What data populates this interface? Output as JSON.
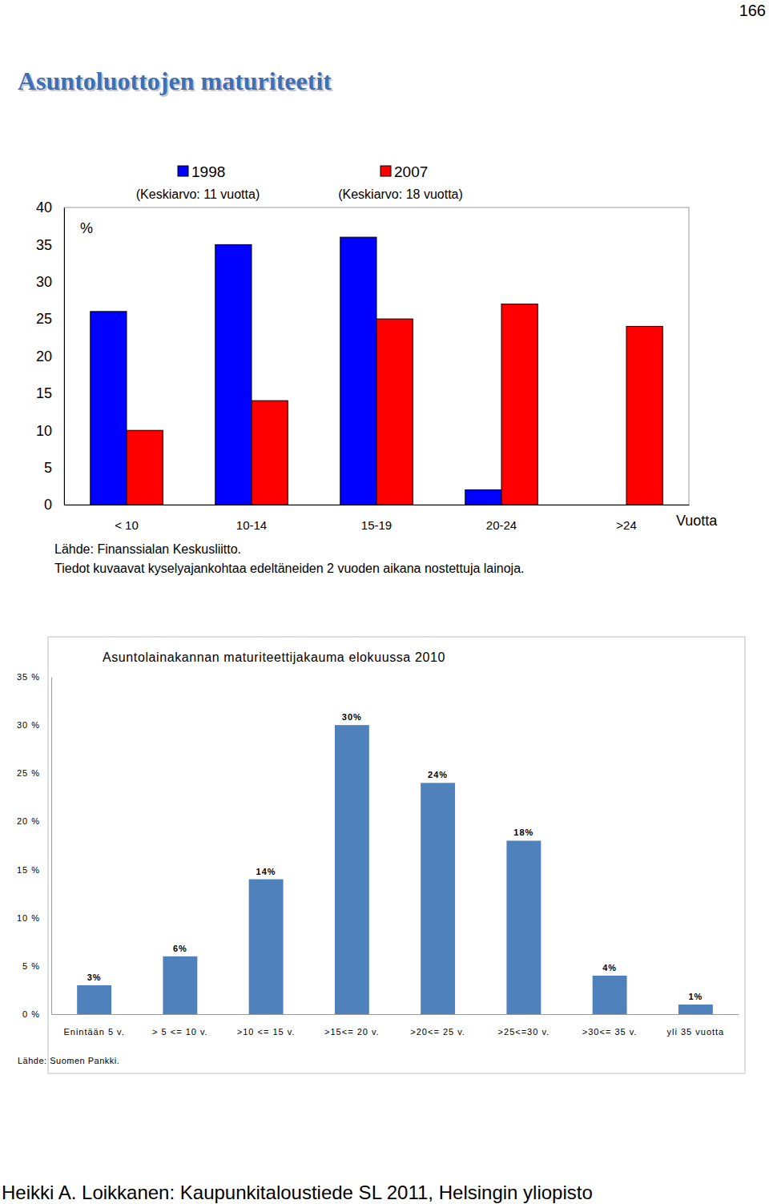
{
  "page": {
    "number": "166",
    "title": "Asuntoluottojen maturiteetit",
    "footer": "Heikki A. Loikkanen: Kaupunkitaloustiede SL 2011, Helsingin yliopisto"
  },
  "chart_data": [
    {
      "type": "bar",
      "categories": [
        "< 10",
        "10-14",
        "15-19",
        "20-24",
        ">24"
      ],
      "series": [
        {
          "name": "1998",
          "note": "(Keskiarvo: 11 vuotta)",
          "color": "#0000ff",
          "values": [
            26,
            35,
            36,
            2,
            0
          ]
        },
        {
          "name": "2007",
          "note": "(Keskiarvo: 18 vuotta)",
          "color": "#ff0000",
          "values": [
            10,
            14,
            25,
            27,
            24
          ]
        }
      ],
      "y_label": "%",
      "x_label": "Vuotta",
      "ylim": [
        0,
        40
      ],
      "yticks": [
        0,
        5,
        10,
        15,
        20,
        25,
        30,
        35,
        40
      ],
      "grid": false,
      "legend": "top",
      "notes": [
        "Lähde: Finanssialan Keskusliitto.",
        "Tiedot kuvaavat kyselyajankohtaa edeltäneiden 2 vuoden aikana nostettuja lainoja."
      ]
    },
    {
      "type": "bar",
      "title": "Asuntolainakannan maturiteettijakauma elokuussa 2010",
      "categories": [
        "Enintään 5 v.",
        "> 5 <= 10 v.",
        ">10 <= 15 v.",
        ">15<= 20 v.",
        ">20<= 25 v.",
        ">25<=30 v.",
        ">30<= 35 v.",
        "yli 35 vuotta"
      ],
      "values": [
        3,
        6,
        14,
        30,
        24,
        18,
        4,
        1
      ],
      "value_labels": [
        "3%",
        "6%",
        "14%",
        "30%",
        "24%",
        "18%",
        "4%",
        "1%"
      ],
      "color": "#4f81bd",
      "ylim": [
        0,
        35
      ],
      "yticks": [
        {
          "value": 0,
          "label": "0 %"
        },
        {
          "value": 5,
          "label": "5 %"
        },
        {
          "value": 10,
          "label": "10 %"
        },
        {
          "value": 15,
          "label": "15 %"
        },
        {
          "value": 20,
          "label": "20 %"
        },
        {
          "value": 25,
          "label": "25 %"
        },
        {
          "value": 30,
          "label": "30 %"
        },
        {
          "value": 35,
          "label": "35 %"
        }
      ],
      "grid": false,
      "data_labels": true,
      "notes": [
        "Lähde: Suomen Pankki."
      ]
    }
  ]
}
